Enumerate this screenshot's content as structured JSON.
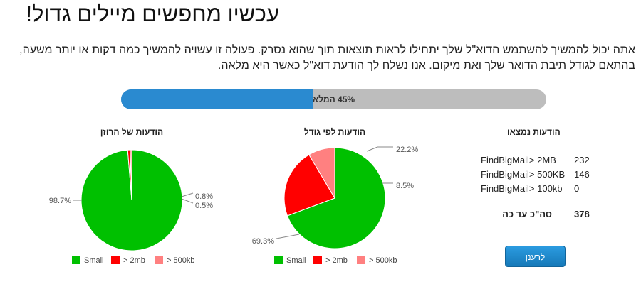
{
  "header": {
    "title": "עכשיו מחפשים מיילים גדול!",
    "description": "אתה יכול להמשיך להשתמש הדוא\"ל שלך יתחילו לראות תוצאות תוך שהוא נסרק. פעולה זו עשויה להמשיך כמה דקות או יותר משעה, בהתאם לגודל תיבת הדואר שלך ואת מיקום. אנו נשלח לך הודעת דוא\"ל כאשר היא מלאה."
  },
  "progress": {
    "percent": 45,
    "label": "45% המלא"
  },
  "colors": {
    "progress_fill": "#2a8ad0",
    "progress_track": "#bdbdbd",
    "small": "#00c000",
    "gt_2mb": "#ff0000",
    "gt_500kb": "#ff8080",
    "button": "#1f8ad0"
  },
  "chart_data": [
    {
      "type": "pie",
      "title": "הודעות של הרוזן",
      "categories": [
        "Small",
        "> 2mb",
        "> 500kb"
      ],
      "values": [
        98.7,
        0.8,
        0.5
      ],
      "labels": [
        "98.7%",
        "0.8%",
        "0.5%"
      ],
      "legend": "bottom"
    },
    {
      "type": "pie",
      "title": "הודעות לפי גודל",
      "categories": [
        "Small",
        "> 2mb",
        "> 500kb"
      ],
      "values": [
        69.3,
        22.2,
        8.5
      ],
      "labels": [
        "69.3%",
        "22.2%",
        "8.5%"
      ],
      "legend": "bottom"
    }
  ],
  "found": {
    "title": "הודעות נמצאו",
    "rows": [
      {
        "name": "FindBigMail> 2MB",
        "value": "232"
      },
      {
        "name": "FindBigMail> 500KB",
        "value": "146"
      },
      {
        "name": "FindBigMail> 100kb",
        "value": "0"
      }
    ],
    "total_label": "סה\"כ עד כה",
    "total_value": "378"
  },
  "refresh_button": {
    "label": "לרענן"
  }
}
